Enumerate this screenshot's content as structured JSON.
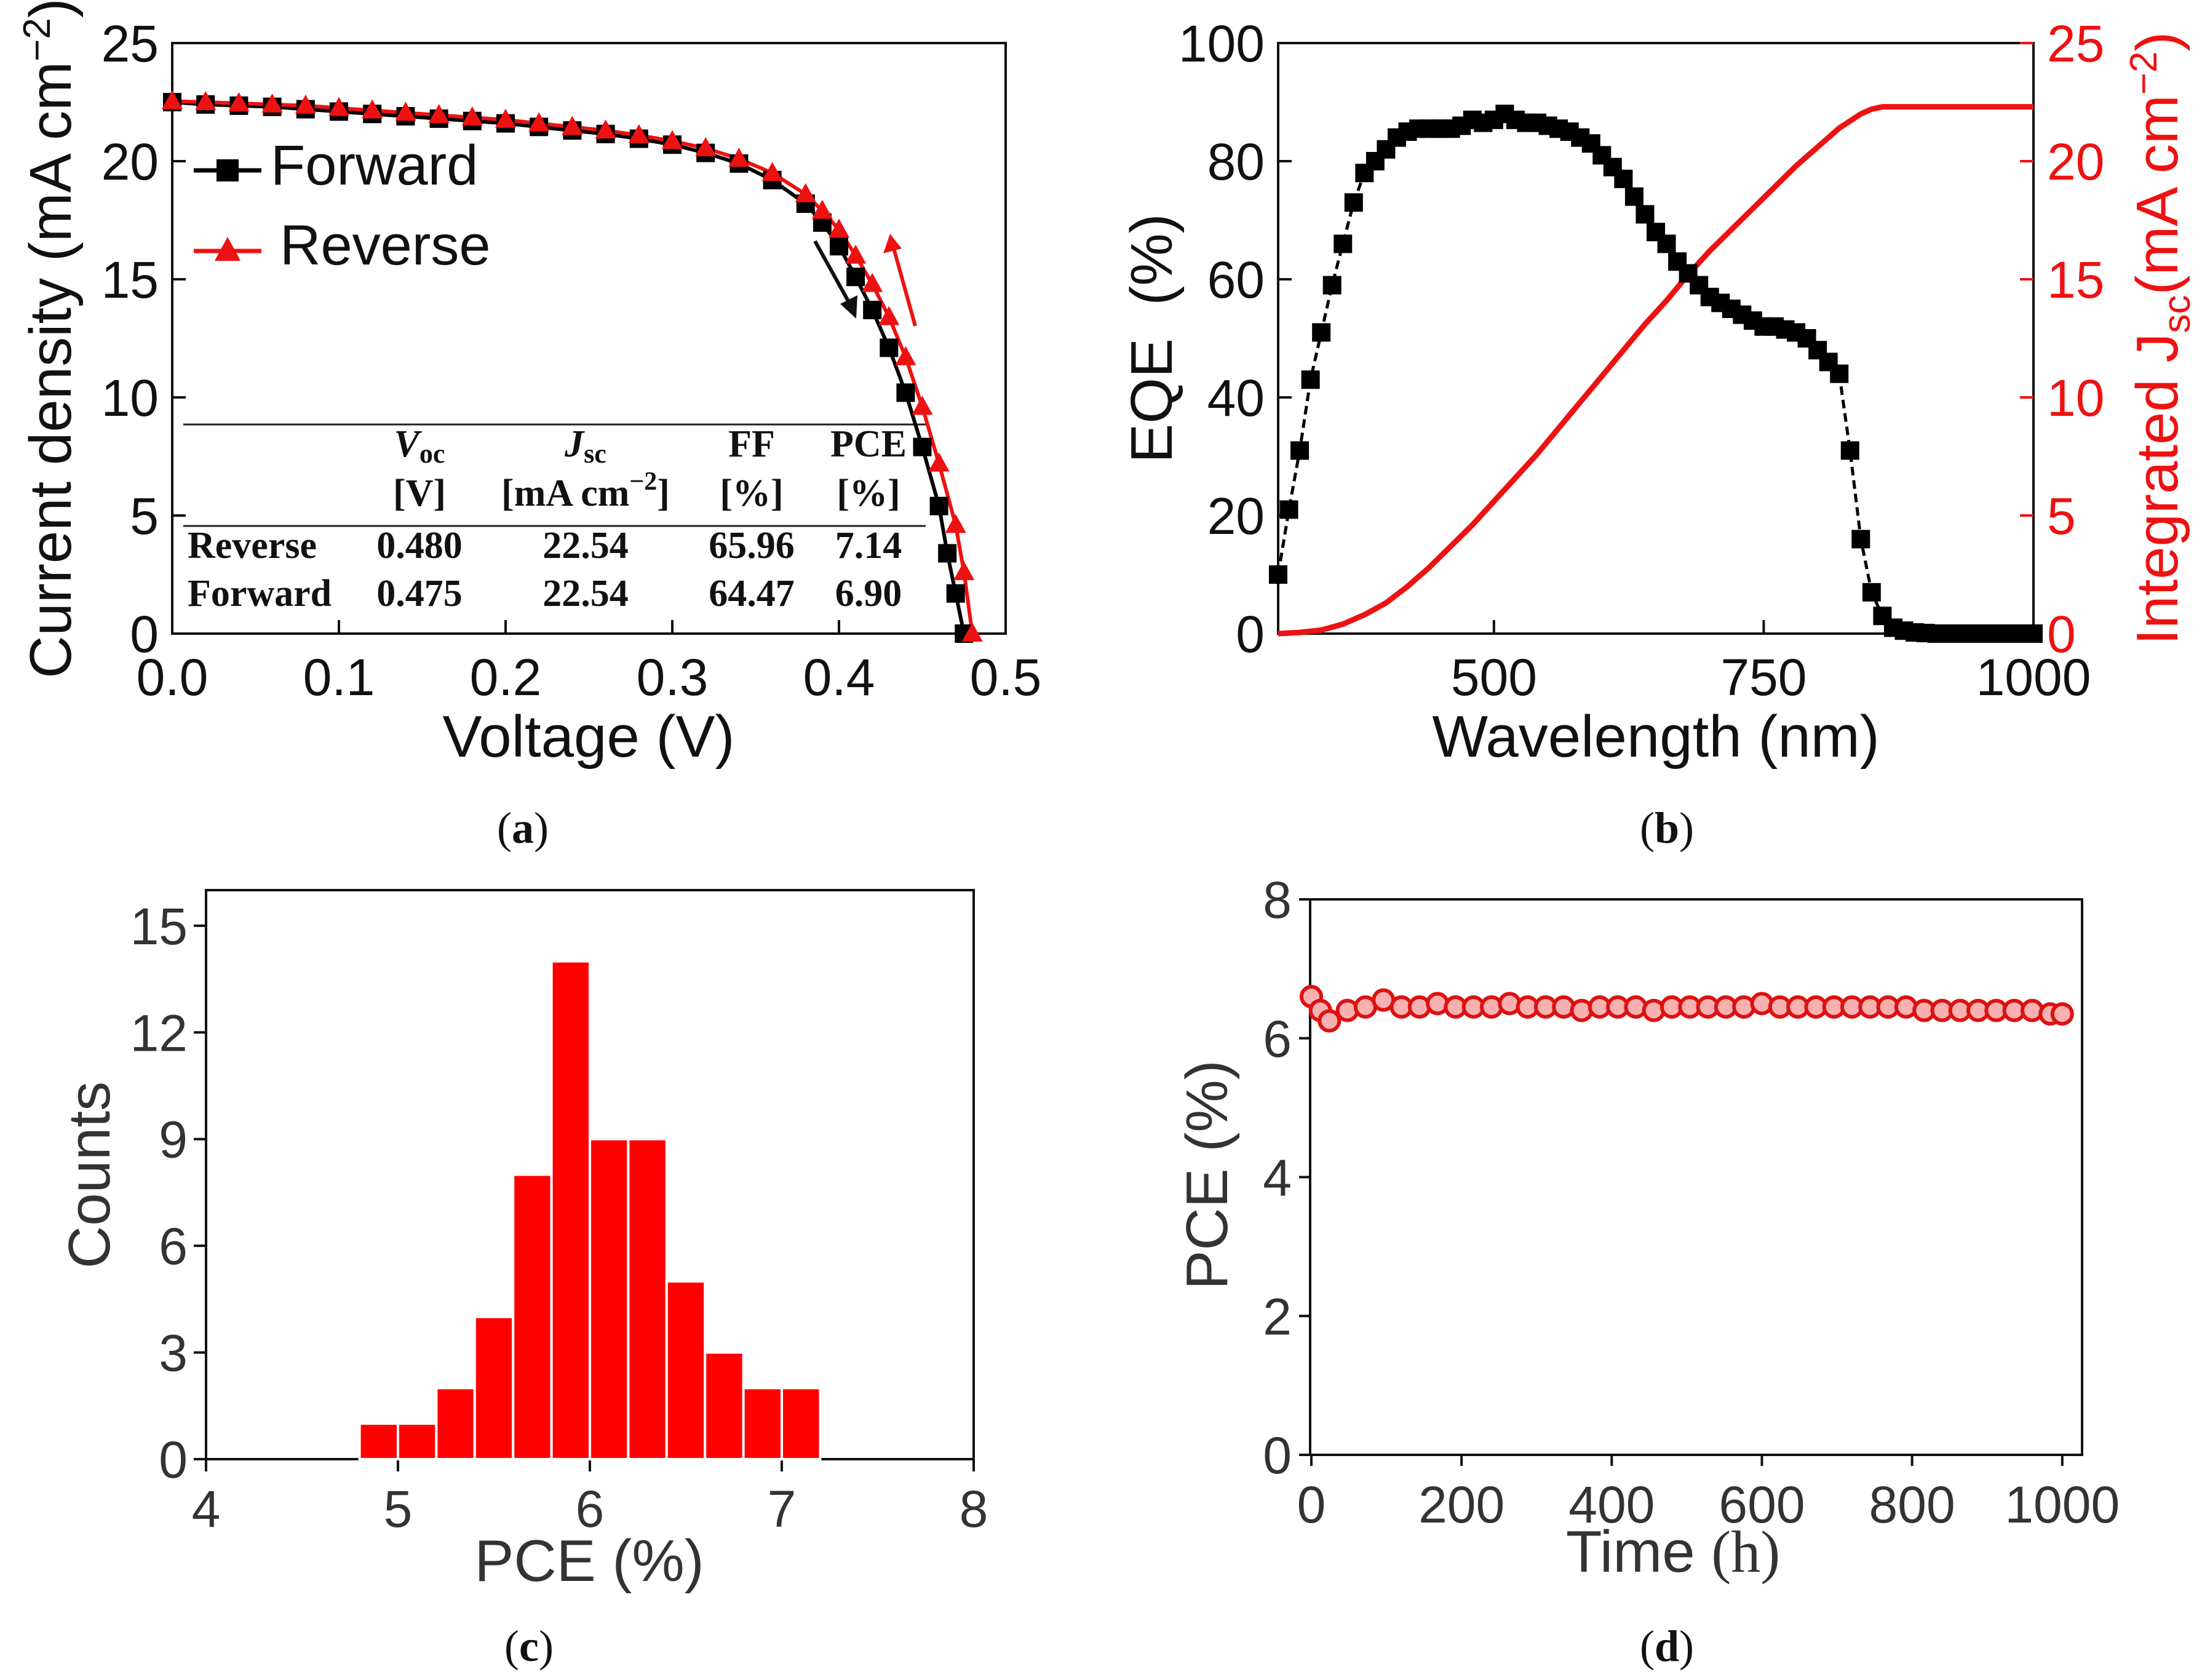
{
  "colors": {
    "black": "#000000",
    "red": "#ee1111",
    "axis": "#111111",
    "hist": "#ff0000"
  },
  "chart_data": [
    {
      "panel": "a",
      "type": "line",
      "caption": "a",
      "xlabel": "Voltage (V)",
      "ylabel": "Current density (mA cm",
      "ylabel_sup": "−2",
      "ylabel_close": ")",
      "xlim": [
        0,
        0.5
      ],
      "ylim": [
        0,
        25
      ],
      "xticks": [
        "0.0",
        "0.1",
        "0.2",
        "0.3",
        "0.4",
        "0.5"
      ],
      "yticks": [
        "0",
        "5",
        "10",
        "15",
        "20",
        "25"
      ],
      "legend": {
        "forward": "Forward",
        "reverse": "Reverse"
      },
      "series": [
        {
          "name": "Forward",
          "marker": "square",
          "color": "#000000",
          "x": [
            0,
            0.02,
            0.04,
            0.06,
            0.08,
            0.1,
            0.12,
            0.14,
            0.16,
            0.18,
            0.2,
            0.22,
            0.24,
            0.26,
            0.28,
            0.3,
            0.32,
            0.34,
            0.36,
            0.38,
            0.39,
            0.4,
            0.41,
            0.42,
            0.43,
            0.44,
            0.45,
            0.46,
            0.465,
            0.47,
            0.475
          ],
          "y": [
            22.5,
            22.4,
            22.35,
            22.3,
            22.2,
            22.1,
            22.0,
            21.9,
            21.8,
            21.7,
            21.6,
            21.45,
            21.3,
            21.15,
            20.95,
            20.7,
            20.35,
            19.9,
            19.2,
            18.2,
            17.4,
            16.4,
            15.1,
            13.7,
            12.1,
            10.2,
            7.9,
            5.4,
            3.4,
            1.7,
            0
          ]
        },
        {
          "name": "Reverse",
          "marker": "triangle",
          "color": "#ee1111",
          "x": [
            0,
            0.02,
            0.04,
            0.06,
            0.08,
            0.1,
            0.12,
            0.14,
            0.16,
            0.18,
            0.2,
            0.22,
            0.24,
            0.26,
            0.28,
            0.3,
            0.32,
            0.34,
            0.36,
            0.38,
            0.39,
            0.4,
            0.41,
            0.42,
            0.43,
            0.44,
            0.45,
            0.46,
            0.47,
            0.475,
            0.48
          ],
          "y": [
            22.54,
            22.5,
            22.45,
            22.4,
            22.35,
            22.25,
            22.15,
            22.05,
            21.95,
            21.85,
            21.75,
            21.6,
            21.45,
            21.3,
            21.1,
            20.85,
            20.55,
            20.1,
            19.5,
            18.6,
            17.9,
            17.1,
            16.0,
            14.8,
            13.4,
            11.7,
            9.6,
            7.2,
            4.6,
            2.6,
            0
          ]
        }
      ],
      "table": {
        "headers": [
          {
            "sym": "V",
            "sub": "oc",
            "unit": "[V]"
          },
          {
            "sym": "J",
            "sub": "sc",
            "unit": "[mA cm",
            "unit_sup": "−2",
            "unit_close": "]"
          },
          {
            "sym": "FF",
            "sub": "",
            "unit": "[%]"
          },
          {
            "sym": "PCE",
            "sub": "",
            "unit": "[%]"
          }
        ],
        "rows": [
          {
            "label": "Reverse",
            "values": [
              "0.480",
              "22.54",
              "65.96",
              "7.14"
            ]
          },
          {
            "label": "Forward",
            "values": [
              "0.475",
              "22.54",
              "64.47",
              "6.90"
            ]
          }
        ]
      }
    },
    {
      "panel": "b",
      "type": "line",
      "caption": "b",
      "xlabel": "Wavelength (nm)",
      "ylabel": "EQE  (%)",
      "y2label": "Integrated J",
      "y2label_sub": "sc",
      "y2label_unit": "(mA cm",
      "y2label_sup": "−2",
      "y2label_close": ")",
      "xlim": [
        300,
        1000
      ],
      "ylim": [
        0,
        100
      ],
      "y2lim": [
        0,
        25
      ],
      "xticks": [
        "500",
        "750",
        "1000"
      ],
      "yticks": [
        "0",
        "20",
        "40",
        "60",
        "80",
        "100"
      ],
      "y2ticks": [
        "0",
        "5",
        "10",
        "15",
        "20",
        "25"
      ],
      "series": [
        {
          "name": "EQE",
          "marker": "square",
          "color": "#000000",
          "x": [
            300,
            310,
            320,
            330,
            340,
            350,
            360,
            370,
            380,
            390,
            400,
            410,
            420,
            430,
            440,
            450,
            460,
            470,
            480,
            490,
            500,
            510,
            520,
            530,
            540,
            550,
            560,
            570,
            580,
            590,
            600,
            610,
            620,
            630,
            640,
            650,
            660,
            670,
            680,
            690,
            700,
            710,
            720,
            730,
            740,
            750,
            760,
            770,
            780,
            790,
            800,
            810,
            820,
            830,
            840,
            850,
            860,
            870,
            880,
            890,
            900,
            910,
            920,
            930,
            940,
            950,
            960,
            970,
            980,
            990,
            1000
          ],
          "y": [
            10,
            21,
            31,
            43,
            51,
            59,
            66,
            73,
            78,
            80,
            82,
            84,
            85,
            85.5,
            85.5,
            85.5,
            85.5,
            86,
            87,
            86.5,
            87,
            88,
            87,
            86.5,
            86.5,
            86,
            85.5,
            85,
            84,
            83,
            81,
            79,
            77,
            74,
            71,
            68,
            66,
            63,
            61,
            59,
            57,
            56,
            55,
            54,
            53,
            52,
            52,
            51.5,
            51,
            50,
            48,
            46,
            44,
            31,
            16,
            7,
            3,
            1,
            0.5,
            0.2,
            0.1,
            0,
            0,
            0,
            0,
            0,
            0,
            0,
            0,
            0,
            0
          ]
        },
        {
          "name": "Integrated Jsc",
          "marker": "none",
          "color": "#ee1111",
          "axis": "right",
          "x": [
            300,
            320,
            340,
            360,
            380,
            400,
            420,
            440,
            460,
            480,
            500,
            520,
            540,
            560,
            580,
            600,
            620,
            640,
            660,
            680,
            700,
            720,
            740,
            760,
            780,
            800,
            820,
            840,
            850,
            860,
            880,
            900,
            1000
          ],
          "y": [
            0,
            0.05,
            0.15,
            0.4,
            0.8,
            1.3,
            2.0,
            2.8,
            3.7,
            4.6,
            5.6,
            6.6,
            7.6,
            8.7,
            9.8,
            10.9,
            12.0,
            13.1,
            14.1,
            15.2,
            16.2,
            17.1,
            18.0,
            18.9,
            19.8,
            20.6,
            21.4,
            22.0,
            22.2,
            22.3,
            22.3,
            22.3,
            22.3
          ]
        }
      ]
    },
    {
      "panel": "c",
      "type": "bar",
      "caption": "c",
      "xlabel": "PCE (%)",
      "ylabel": "Counts",
      "xlim": [
        4,
        8
      ],
      "ylim": [
        0,
        16
      ],
      "xticks": [
        "4",
        "5",
        "6",
        "7",
        "8"
      ],
      "yticks": [
        "0",
        "3",
        "6",
        "9",
        "12",
        "15"
      ],
      "bin_width": 0.2,
      "bins": [
        4.8,
        5.0,
        5.2,
        5.4,
        5.6,
        5.8,
        6.0,
        6.2,
        6.4,
        6.6,
        6.8,
        7.0
      ],
      "counts": [
        1,
        1,
        2,
        4,
        8,
        14,
        9,
        9,
        5,
        3,
        2,
        2
      ]
    },
    {
      "panel": "d",
      "type": "scatter",
      "caption": "d",
      "xlabel": "Time ",
      "xlabel_unit": "(h)",
      "ylabel": "PCE (%)",
      "xlim": [
        0,
        1010
      ],
      "ylim": [
        0,
        8
      ],
      "xticks": [
        "0",
        "200",
        "400",
        "600",
        "800",
        "1000"
      ],
      "yticks": [
        "0",
        "2",
        "4",
        "6",
        "8"
      ],
      "x": [
        0,
        12,
        24,
        48,
        72,
        96,
        120,
        144,
        168,
        192,
        216,
        240,
        264,
        288,
        312,
        336,
        360,
        384,
        408,
        432,
        456,
        480,
        504,
        528,
        552,
        576,
        600,
        624,
        648,
        672,
        696,
        720,
        744,
        768,
        792,
        816,
        840,
        864,
        888,
        912,
        936,
        960,
        984,
        1000
      ],
      "y": [
        6.6,
        6.4,
        6.25,
        6.4,
        6.45,
        6.55,
        6.45,
        6.45,
        6.5,
        6.45,
        6.45,
        6.45,
        6.5,
        6.45,
        6.45,
        6.45,
        6.4,
        6.45,
        6.45,
        6.45,
        6.4,
        6.45,
        6.45,
        6.45,
        6.45,
        6.45,
        6.5,
        6.45,
        6.45,
        6.45,
        6.45,
        6.45,
        6.45,
        6.45,
        6.45,
        6.4,
        6.4,
        6.4,
        6.4,
        6.4,
        6.4,
        6.4,
        6.35,
        6.35
      ]
    }
  ]
}
